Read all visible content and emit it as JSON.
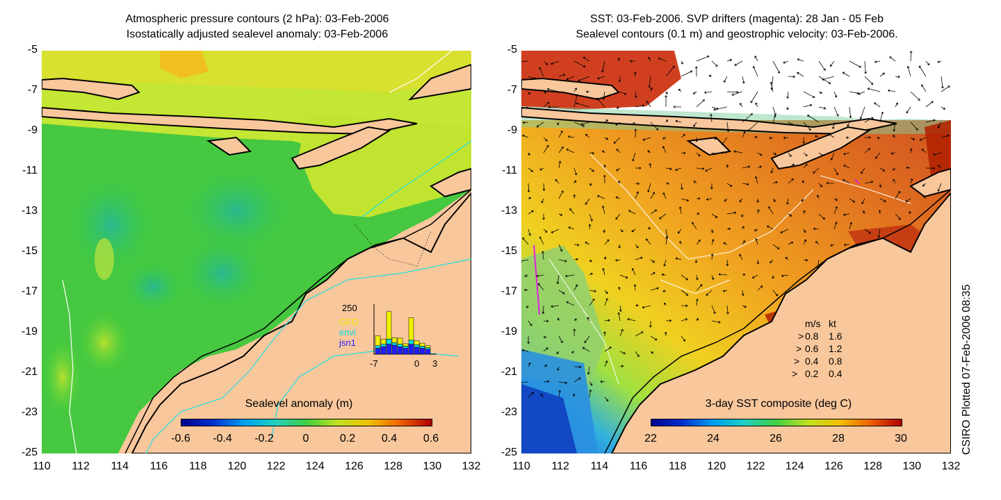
{
  "left_panel": {
    "title_line1": "Atmospheric pressure contours (2 hPa): 03-Feb-2006",
    "title_line2": "Isostatically adjusted sealevel anomaly: 03-Feb-2006",
    "colorbar_label": "Sealevel anomaly (m)",
    "colorbar_ticks": [
      "-0.6",
      "-0.4",
      "-0.2",
      "0",
      "0.2",
      "0.4",
      "0.6"
    ],
    "y_ticks": [
      "-5",
      "-7",
      "-9",
      "-11",
      "-13",
      "-15",
      "-17",
      "-19",
      "-21",
      "-23",
      "-25"
    ],
    "x_ticks": [
      "110",
      "112",
      "114",
      "116",
      "118",
      "120",
      "122",
      "124",
      "126",
      "128",
      "130",
      "132"
    ],
    "inset": {
      "max_label": "250",
      "x_ticks": [
        "-7",
        "0",
        "3"
      ],
      "legend": [
        {
          "label": "GFO",
          "color": "#f0f000"
        },
        {
          "label": "envi",
          "color": "#00e0e0"
        },
        {
          "label": "jsn1",
          "color": "#2020ff"
        }
      ],
      "bars": [
        {
          "blue": 0.12,
          "cyan": 0.05,
          "yellow": 0.2
        },
        {
          "blue": 0.15,
          "cyan": 0.05,
          "yellow": 0.1
        },
        {
          "blue": 0.2,
          "cyan": 0.1,
          "yellow": 0.55
        },
        {
          "blue": 0.18,
          "cyan": 0.05,
          "yellow": 0.1
        },
        {
          "blue": 0.15,
          "cyan": 0.05,
          "yellow": 0.12
        },
        {
          "blue": 0.12,
          "cyan": 0.04,
          "yellow": 0.05
        },
        {
          "blue": 0.2,
          "cyan": 0.08,
          "yellow": 0.45
        },
        {
          "blue": 0.14,
          "cyan": 0.05,
          "yellow": 0.08
        },
        {
          "blue": 0.12,
          "cyan": 0.04,
          "yellow": 0.06
        },
        {
          "blue": 0.1,
          "cyan": 0.03,
          "yellow": 0.04
        }
      ]
    }
  },
  "right_panel": {
    "title_line1": "SST: 03-Feb-2006. SVP drifters (magenta): 28 Jan - 05 Feb",
    "title_line2": "Sealevel contours (0.1 m) and geostrophic velocity: 03-Feb-2006.",
    "colorbar_label": "3-day SST composite (deg C)",
    "colorbar_ticks": [
      "22",
      "24",
      "26",
      "28",
      "30"
    ],
    "y_ticks": [
      "-5",
      "-7",
      "-9",
      "-11",
      "-13",
      "-15",
      "-17",
      "-19",
      "-21",
      "-23",
      "-25"
    ],
    "x_ticks": [
      "110",
      "112",
      "114",
      "116",
      "118",
      "120",
      "122",
      "124",
      "126",
      "128",
      "130",
      "132"
    ],
    "velocity_legend": {
      "header_ms": "m/s",
      "header_kt": "kt",
      "rows": [
        {
          "ms": "0.8",
          "kt": "1.6"
        },
        {
          "ms": "0.6",
          "kt": "1.2"
        },
        {
          "ms": "0.4",
          "kt": "0.8"
        },
        {
          "ms": "0.2",
          "kt": "0.4"
        }
      ]
    }
  },
  "side_note": "CSIRO Plotted 07-Feb-2006 08:35",
  "colors": {
    "land": "#f8c79c",
    "ssa_green": "#3ccf3c",
    "ssa_teal": "#2ab88a",
    "ssa_yellow": "#c8e830",
    "sst_orange": "#f0a020",
    "sst_red": "#c02000",
    "sst_blue": "#2060e0"
  }
}
